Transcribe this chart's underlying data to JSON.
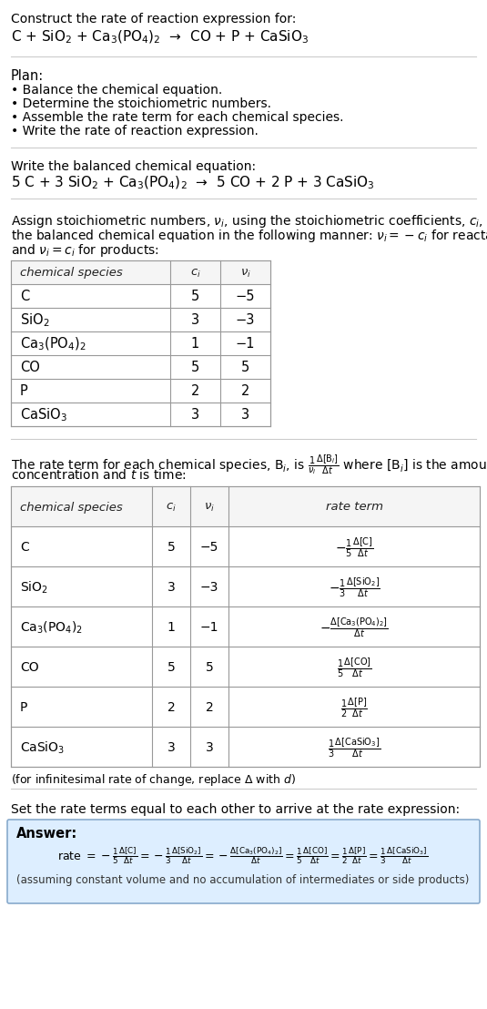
{
  "title_line1": "Construct the rate of reaction expression for:",
  "title_line2": "C + SiO$_2$ + Ca$_3$(PO$_4$)$_2$  →  CO + P + CaSiO$_3$",
  "plan_header": "Plan:",
  "plan_items": [
    "• Balance the chemical equation.",
    "• Determine the stoichiometric numbers.",
    "• Assemble the rate term for each chemical species.",
    "• Write the rate of reaction expression."
  ],
  "balanced_header": "Write the balanced chemical equation:",
  "balanced_eq": "5 C + 3 SiO$_2$ + Ca$_3$(PO$_4$)$_2$  →  5 CO + 2 P + 3 CaSiO$_3$",
  "stoich_intro_parts": [
    "Assign stoichiometric numbers, $\\nu_i$, using the stoichiometric coefficients, $c_i$, from",
    "the balanced chemical equation in the following manner: $\\nu_i = -c_i$ for reactants",
    "and $\\nu_i = c_i$ for products:"
  ],
  "table1_headers": [
    "chemical species",
    "$c_i$",
    "$\\nu_i$"
  ],
  "table1_rows": [
    [
      "C",
      "5",
      "−5"
    ],
    [
      "SiO$_2$",
      "3",
      "−3"
    ],
    [
      "Ca$_3$(PO$_4$)$_2$",
      "1",
      "−1"
    ],
    [
      "CO",
      "5",
      "5"
    ],
    [
      "P",
      "2",
      "2"
    ],
    [
      "CaSiO$_3$",
      "3",
      "3"
    ]
  ],
  "rate_term_intro_parts": [
    "The rate term for each chemical species, B$_i$, is $\\frac{1}{\\nu_i}\\frac{\\Delta[\\mathrm{B}_i]}{\\Delta t}$ where [B$_i$] is the amount",
    "concentration and $t$ is time:"
  ],
  "table2_headers": [
    "chemical species",
    "$c_i$",
    "$\\nu_i$",
    "rate term"
  ],
  "table2_rows": [
    [
      "C",
      "5",
      "−5",
      "$-\\frac{1}{5}\\frac{\\Delta[\\mathrm{C}]}{\\Delta t}$"
    ],
    [
      "SiO$_2$",
      "3",
      "−3",
      "$-\\frac{1}{3}\\frac{\\Delta[\\mathrm{SiO_2}]}{\\Delta t}$"
    ],
    [
      "Ca$_3$(PO$_4$)$_2$",
      "1",
      "−1",
      "$-\\frac{\\Delta[\\mathrm{Ca_3(PO_4)_2}]}{\\Delta t}$"
    ],
    [
      "CO",
      "5",
      "5",
      "$\\frac{1}{5}\\frac{\\Delta[\\mathrm{CO}]}{\\Delta t}$"
    ],
    [
      "P",
      "2",
      "2",
      "$\\frac{1}{2}\\frac{\\Delta[\\mathrm{P}]}{\\Delta t}$"
    ],
    [
      "CaSiO$_3$",
      "3",
      "3",
      "$\\frac{1}{3}\\frac{\\Delta[\\mathrm{CaSiO_3}]}{\\Delta t}$"
    ]
  ],
  "infinitesimal_note": "(for infinitesimal rate of change, replace Δ with $d$)",
  "set_equal_text": "Set the rate terms equal to each other to arrive at the rate expression:",
  "answer_label": "Answer:",
  "answer_box_color": "#ddeeff",
  "answer_border_color": "#88aacc",
  "rate_expr_parts": [
    "rate $= -\\frac{1}{5}\\frac{\\Delta[\\mathrm{C}]}{\\Delta t} = -\\frac{1}{3}\\frac{\\Delta[\\mathrm{SiO_2}]}{\\Delta t} = -\\frac{\\Delta[\\mathrm{Ca_3(PO_4)_2}]}{\\Delta t} = \\frac{1}{5}\\frac{\\Delta[\\mathrm{CO}]}{\\Delta t} = \\frac{1}{2}\\frac{\\Delta[\\mathrm{P}]}{\\Delta t} = \\frac{1}{3}\\frac{\\Delta[\\mathrm{CaSiO_3}]}{\\Delta t}$"
  ],
  "assuming_note": "(assuming constant volume and no accumulation of intermediates or side products)",
  "bg_color": "#ffffff",
  "text_color": "#000000",
  "font_size": 10.5,
  "header_font_size": 10.0,
  "small_font_size": 9.0
}
